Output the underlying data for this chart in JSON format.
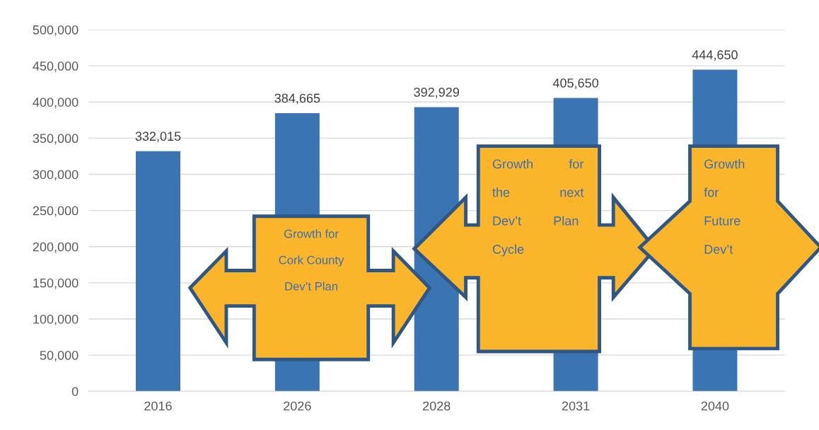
{
  "chart_data": {
    "type": "bar",
    "categories": [
      "2016",
      "2026",
      "2028",
      "2031",
      "2040"
    ],
    "values": [
      332015,
      384665,
      392929,
      405650,
      444650
    ],
    "color": "#3a74b3",
    "value_labels": [
      "332,015",
      "384,665",
      "392,929",
      "405,650",
      "444,650"
    ],
    "ylim": [
      0,
      500000
    ],
    "yticks": [
      {
        "value": 0,
        "label": "0"
      },
      {
        "value": 50000,
        "label": "50,000"
      },
      {
        "value": 100000,
        "label": "100,000"
      },
      {
        "value": 150000,
        "label": "150,000"
      },
      {
        "value": 200000,
        "label": "200,000"
      },
      {
        "value": 250000,
        "label": "250,000"
      },
      {
        "value": 300000,
        "label": "300,000"
      },
      {
        "value": 350000,
        "label": "350,000"
      },
      {
        "value": 400000,
        "label": "400,000"
      },
      {
        "value": 450000,
        "label": "450,000"
      },
      {
        "value": 500000,
        "label": "500,000"
      }
    ],
    "grid": "y",
    "annotations": [
      "Growth for\n\nCork County\n\nDev’t Plan",
      "Growth          for\n\nthe              next\n\nDev’t         Plan\n\nCycle",
      "Growth\n\nfor\n\nFuture\n\nDev’t"
    ]
  }
}
